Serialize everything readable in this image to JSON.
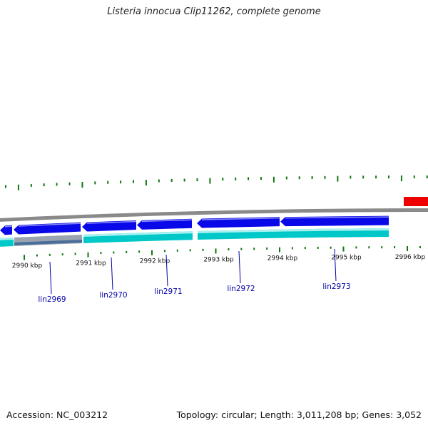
{
  "title": "Listeria innocua Clip11262, complete genome",
  "footer": {
    "accession": "Accession: NC_003212",
    "stats": "Topology: circular; Length: 3,011,208 bp; Genes: 3,052"
  },
  "colors": {
    "forward_cds": "#0808e8",
    "forward_highlight": "#8a8af4",
    "reverse_cds": "#00c8c8",
    "reverse_highlight": "#a8f0f0",
    "pseudo": "#9aa4b0",
    "backbone": "#8a8a8a",
    "rna": "#ee0000",
    "ticks": "#117711",
    "label": "#0000aa"
  },
  "axis": {
    "labels": [
      "2990 kbp",
      "2991 kbp",
      "2992 kbp",
      "2993 kbp",
      "2994 kbp",
      "2995 kbp",
      "2996 kbp"
    ]
  },
  "genes": [
    {
      "name": "lin2969"
    },
    {
      "name": "lin2970"
    },
    {
      "name": "lin2971"
    },
    {
      "name": "lin2972"
    },
    {
      "name": "lin2973"
    }
  ]
}
